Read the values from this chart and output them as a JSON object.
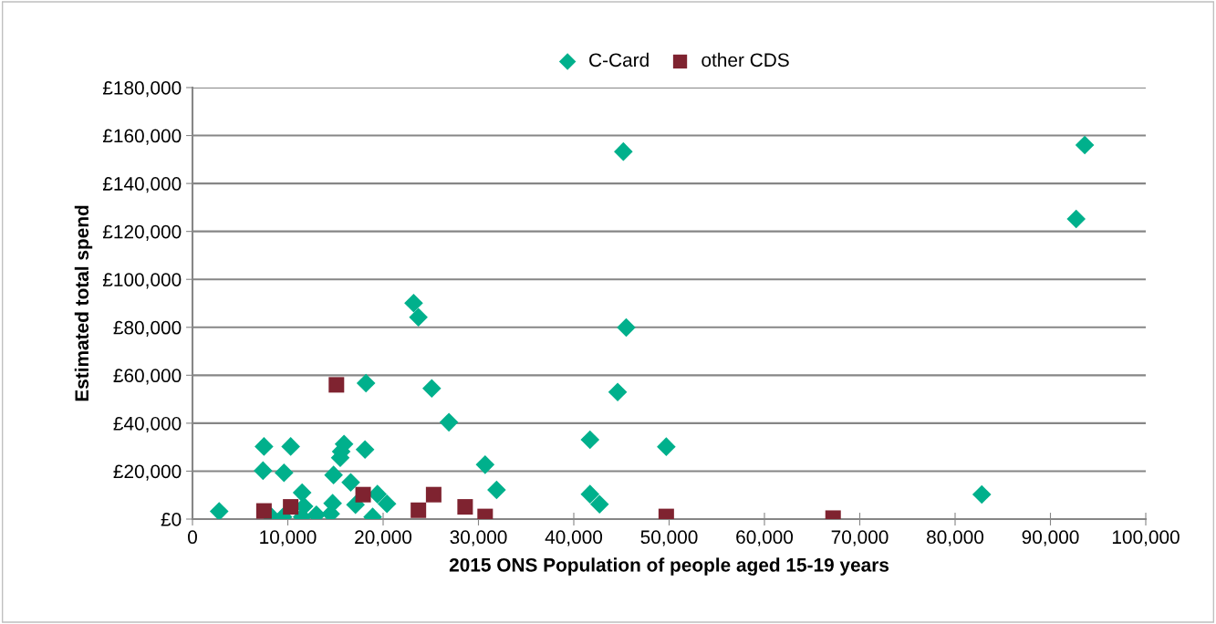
{
  "chart_data": {
    "type": "scatter",
    "xlabel": "2015 ONS Population of people aged 15-19 years",
    "ylabel": "Estimated total spend",
    "xlim": [
      0,
      100000
    ],
    "ylim": [
      0,
      180000
    ],
    "xticks": [
      0,
      {
        "value": 10000,
        "label": "10,000"
      },
      {
        "value": 20000,
        "label": "20,000"
      },
      {
        "value": 30000,
        "label": "30,000"
      },
      {
        "value": 40000,
        "label": "40,000"
      },
      {
        "value": 50000,
        "label": "50,000"
      },
      {
        "value": 60000,
        "label": "60,000"
      },
      {
        "value": 70000,
        "label": "70,000"
      },
      {
        "value": 80000,
        "label": "80,000"
      },
      {
        "value": 90000,
        "label": "90,000"
      },
      {
        "value": 100000,
        "label": "100,000"
      }
    ],
    "yticks": [
      {
        "value": 0,
        "label": "£0"
      },
      {
        "value": 20000,
        "label": "£20,000"
      },
      {
        "value": 40000,
        "label": "£40,000"
      },
      {
        "value": 60000,
        "label": "£60,000"
      },
      {
        "value": 80000,
        "label": "£80,000"
      },
      {
        "value": 100000,
        "label": "£100,000"
      },
      {
        "value": 120000,
        "label": "£120,000"
      },
      {
        "value": 140000,
        "label": "£140,000"
      },
      {
        "value": 160000,
        "label": "£160,000"
      },
      {
        "value": 180000,
        "label": "£180,000"
      }
    ],
    "grid": "y",
    "legend": "top",
    "series": [
      {
        "name": "C-Card",
        "color": "#00b08c",
        "marker": "diamond",
        "x": [
          2800,
          7500,
          7400,
          10300,
          9600,
          8300,
          9500,
          11500,
          11700,
          11500,
          13000,
          14500,
          14700,
          14800,
          15500,
          15600,
          15900,
          16600,
          17100,
          18100,
          19400,
          18900,
          20400,
          18200,
          23200,
          23700,
          25100,
          26900,
          30700,
          31900,
          41700,
          41700,
          42700,
          45500,
          44600,
          49700,
          45200,
          93600,
          92700,
          82800
        ],
        "values": [
          3200,
          30300,
          20200,
          30300,
          19300,
          900,
          900,
          11000,
          5300,
          900,
          1800,
          2200,
          6600,
          18400,
          25600,
          28200,
          31300,
          15300,
          6000,
          29000,
          10400,
          900,
          6400,
          56700,
          90100,
          84200,
          54500,
          40400,
          22700,
          12200,
          33100,
          10400,
          6200,
          79900,
          53000,
          30200,
          153300,
          156000,
          125200,
          10300
        ]
      },
      {
        "name": "other CDS",
        "color": "#7f2330",
        "marker": "square",
        "x": [
          7500,
          10300,
          15100,
          17900,
          23700,
          25300,
          28600,
          30700,
          49700,
          67200
        ],
        "values": [
          3400,
          5100,
          56000,
          10200,
          3700,
          10200,
          5100,
          1100,
          1100,
          400
        ]
      }
    ]
  }
}
